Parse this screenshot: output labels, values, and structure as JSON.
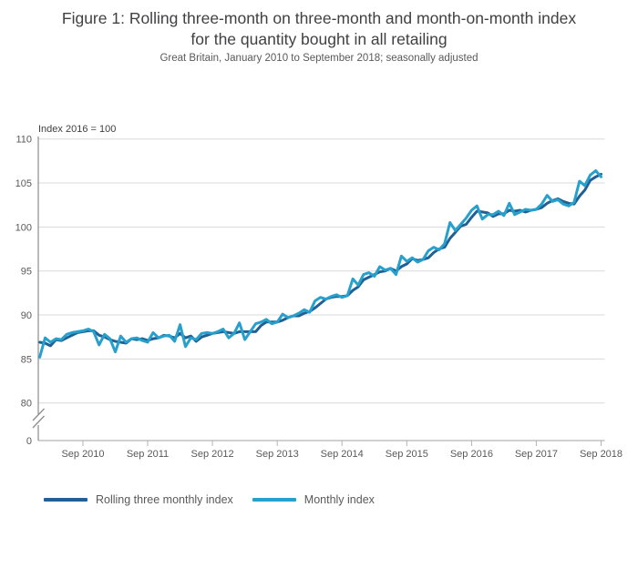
{
  "figure": {
    "title_lines": [
      "Figure 1: Rolling three-month on three-month and month-on-month index",
      "for the quantity bought in all retailing"
    ],
    "subtitle": "Great Britain, January 2010 to September 2018; seasonally adjusted"
  },
  "colors": {
    "grid": "#d9d9d9",
    "axis": "#b3b3b3",
    "axis_dark": "#8c8c8c",
    "tick_text": "#595959",
    "rolling_series": "#206095",
    "monthly_series": "#27a0cc"
  },
  "chart_data": {
    "type": "line",
    "title": "Figure 1: Rolling three-month on three-month and month-on-month index for the quantity bought in all retailing",
    "subtitle": "Great Britain, January 2010 to September 2018; seasonally adjusted",
    "frequency": "monthly",
    "x_range": "January 2010 to September 2018",
    "ylim": [
      80,
      110
    ],
    "axis_break_to_zero": true,
    "grid": true,
    "legend_position": "bottom",
    "y_axis": {
      "title": "Index 2016 = 100",
      "ticks": [
        110,
        105,
        100,
        95,
        90,
        85,
        80
      ],
      "zero_label": "0"
    },
    "x_axis": {
      "ticks": [
        {
          "label": "Sep 2010",
          "month": 8
        },
        {
          "label": "Sep 2011",
          "month": 20
        },
        {
          "label": "Sep 2012",
          "month": 32
        },
        {
          "label": "Sep 2013",
          "month": 44
        },
        {
          "label": "Sep 2014",
          "month": 56
        },
        {
          "label": "Sep 2015",
          "month": 68
        },
        {
          "label": "Sep 2016",
          "month": 80
        },
        {
          "label": "Sep 2017",
          "month": 92
        },
        {
          "label": "Sep 2018",
          "month": 104
        }
      ]
    },
    "series": [
      {
        "name": "Rolling three monthly index",
        "color": "#206095",
        "values": [
          86.9,
          86.8,
          86.5,
          87.2,
          87.1,
          87.4,
          87.7,
          88.0,
          88.1,
          88.2,
          88.2,
          87.7,
          87.5,
          87.2,
          87.0,
          86.9,
          86.8,
          87.3,
          87.2,
          87.3,
          87.1,
          87.3,
          87.4,
          87.7,
          87.6,
          87.4,
          87.9,
          87.4,
          87.6,
          87.0,
          87.5,
          87.7,
          87.9,
          88.0,
          88.1,
          88.0,
          87.9,
          88.1,
          88.1,
          88.1,
          88.1,
          88.8,
          89.2,
          89.2,
          89.2,
          89.4,
          89.7,
          89.9,
          89.9,
          90.2,
          90.4,
          90.8,
          91.3,
          91.8,
          92.0,
          92.1,
          92.1,
          92.2,
          92.8,
          93.2,
          94.0,
          94.3,
          94.6,
          94.9,
          95.0,
          95.3,
          95.0,
          95.5,
          95.8,
          96.4,
          96.2,
          96.3,
          96.5,
          97.1,
          97.5,
          97.7,
          98.7,
          99.4,
          100.1,
          100.3,
          101.1,
          101.8,
          101.7,
          101.6,
          101.2,
          101.5,
          101.5,
          101.9,
          101.8,
          101.9,
          101.7,
          101.9,
          102.0,
          102.2,
          102.7,
          103.0,
          103.2,
          102.9,
          102.7,
          102.6,
          103.5,
          104.2,
          105.3,
          105.7,
          106.0
        ]
      },
      {
        "name": "Monthly index",
        "color": "#27a0cc",
        "values": [
          85.2,
          87.4,
          86.9,
          87.3,
          87.2,
          87.8,
          88.0,
          88.1,
          88.2,
          88.4,
          88.1,
          86.6,
          87.8,
          87.3,
          85.8,
          87.6,
          86.9,
          87.3,
          87.4,
          87.1,
          86.9,
          88.0,
          87.4,
          87.6,
          87.7,
          87.0,
          88.9,
          86.4,
          87.4,
          87.2,
          87.9,
          88.0,
          87.9,
          88.1,
          88.4,
          87.4,
          87.9,
          89.1,
          87.2,
          88.1,
          89.0,
          89.2,
          89.5,
          89.0,
          89.2,
          90.1,
          89.7,
          89.9,
          90.2,
          90.6,
          90.3,
          91.6,
          92.0,
          91.8,
          92.1,
          92.3,
          92.0,
          92.2,
          94.1,
          93.4,
          94.6,
          94.8,
          94.4,
          95.5,
          95.1,
          95.3,
          94.6,
          96.7,
          96.1,
          96.5,
          96.0,
          96.3,
          97.3,
          97.7,
          97.4,
          98.1,
          100.5,
          99.6,
          100.3,
          101.0,
          101.9,
          102.4,
          100.9,
          101.4,
          101.4,
          101.8,
          101.3,
          102.7,
          101.4,
          101.7,
          102.0,
          101.9,
          102.0,
          102.6,
          103.6,
          102.9,
          103.1,
          102.6,
          102.4,
          102.8,
          105.2,
          104.7,
          105.9,
          106.4,
          105.7
        ]
      }
    ]
  }
}
